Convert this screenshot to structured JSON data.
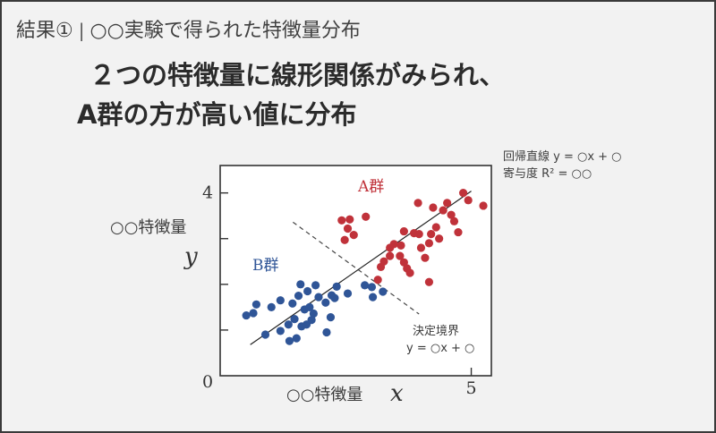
{
  "header": {
    "prefix": "結果①",
    "separator": "|",
    "title": "○○実験で得られた特徴量分布"
  },
  "headline": {
    "line1": "２つの特徴量に線形関係がみられ、",
    "line2": "A群の方が高い値に分布"
  },
  "regression_note": {
    "line1": "回帰直線 y = ○x + ○",
    "line2": "寄与度 R² = ○○"
  },
  "chart_data": {
    "type": "scatter",
    "xlabel": "○○特徴量",
    "x_var": "x",
    "ylabel": "○○特徴量",
    "y_var": "y",
    "xlim": [
      0,
      5.4
    ],
    "ylim": [
      0,
      4.6
    ],
    "x_tick_labels": [
      "5"
    ],
    "x_ticks": [
      5
    ],
    "y_tick_labels": [
      "4"
    ],
    "y_ticks": [
      4
    ],
    "y_minor_ticks": [
      1,
      2,
      3
    ],
    "origin_label": "0",
    "legend": "none",
    "grid": false,
    "colors": {
      "A": "#c0323a",
      "B": "#2f5597",
      "axis": "#333333"
    },
    "series": [
      {
        "name": "A群",
        "color": "#c0323a",
        "points": [
          [
            2.42,
            3.4
          ],
          [
            2.58,
            3.42
          ],
          [
            2.54,
            3.22
          ],
          [
            2.48,
            2.97
          ],
          [
            2.9,
            3.48
          ],
          [
            2.66,
            3.08
          ],
          [
            3.2,
            2.38
          ],
          [
            3.26,
            2.5
          ],
          [
            3.38,
            2.8
          ],
          [
            3.46,
            2.88
          ],
          [
            3.38,
            2.62
          ],
          [
            3.6,
            2.85
          ],
          [
            3.58,
            2.62
          ],
          [
            3.66,
            2.48
          ],
          [
            3.66,
            3.16
          ],
          [
            3.72,
            2.35
          ],
          [
            3.78,
            2.25
          ],
          [
            3.86,
            3.12
          ],
          [
            3.96,
            3.1
          ],
          [
            4.0,
            2.8
          ],
          [
            3.94,
            3.78
          ],
          [
            4.08,
            2.58
          ],
          [
            4.16,
            2.9
          ],
          [
            4.2,
            3.1
          ],
          [
            4.24,
            3.68
          ],
          [
            4.3,
            3.25
          ],
          [
            4.36,
            3.0
          ],
          [
            4.44,
            3.62
          ],
          [
            4.52,
            3.78
          ],
          [
            4.6,
            3.52
          ],
          [
            4.66,
            3.38
          ],
          [
            4.74,
            3.14
          ],
          [
            4.84,
            4.0
          ],
          [
            4.94,
            3.84
          ],
          [
            5.24,
            3.72
          ],
          [
            4.16,
            2.05
          ],
          [
            3.14,
            2.1
          ]
        ]
      },
      {
        "name": "B群",
        "color": "#2f5597",
        "points": [
          [
            0.52,
            1.32
          ],
          [
            0.66,
            1.37
          ],
          [
            0.72,
            1.56
          ],
          [
            0.9,
            0.9
          ],
          [
            1.02,
            1.5
          ],
          [
            1.2,
            0.98
          ],
          [
            1.2,
            1.65
          ],
          [
            1.36,
            1.12
          ],
          [
            1.38,
            0.76
          ],
          [
            1.44,
            1.58
          ],
          [
            1.48,
            1.24
          ],
          [
            1.52,
            0.82
          ],
          [
            1.56,
            1.75
          ],
          [
            1.6,
            2.0
          ],
          [
            1.62,
            1.08
          ],
          [
            1.68,
            1.45
          ],
          [
            1.72,
            1.12
          ],
          [
            1.74,
            1.85
          ],
          [
            1.78,
            1.5
          ],
          [
            1.82,
            1.22
          ],
          [
            1.86,
            1.36
          ],
          [
            1.9,
            1.98
          ],
          [
            1.96,
            1.72
          ],
          [
            2.1,
            1.6
          ],
          [
            2.22,
            1.76
          ],
          [
            2.28,
            1.7
          ],
          [
            2.32,
            1.95
          ],
          [
            2.54,
            1.8
          ],
          [
            2.88,
            1.98
          ],
          [
            3.02,
            1.94
          ],
          [
            3.04,
            1.72
          ],
          [
            3.24,
            1.84
          ],
          [
            2.12,
            0.95
          ],
          [
            2.2,
            1.28
          ]
        ]
      }
    ],
    "regression_line": {
      "x": [
        0.6,
        5.0
      ],
      "y": [
        0.68,
        4.04
      ]
    },
    "decision_boundary": {
      "x": [
        1.45,
        3.96
      ],
      "y": [
        3.36,
        1.35
      ]
    },
    "group_labels": [
      {
        "text": "A群",
        "color": "#c0323a"
      },
      {
        "text": "B群",
        "color": "#2f5597"
      }
    ],
    "boundary_label": {
      "line1": "決定境界",
      "line2": "y = ○x + ○"
    }
  }
}
